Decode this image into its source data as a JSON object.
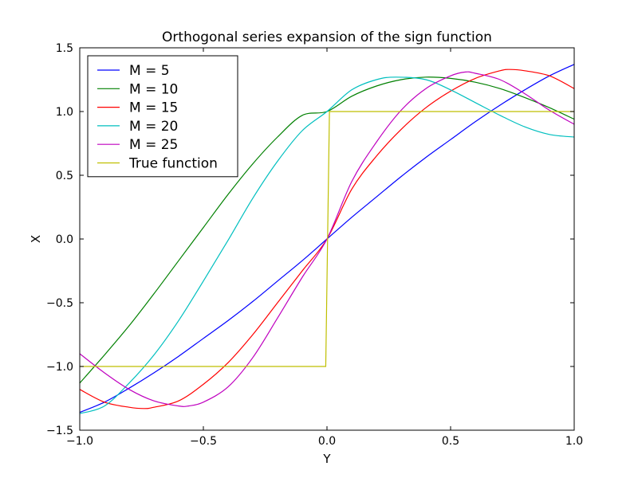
{
  "chart_data": {
    "type": "line",
    "title": "Orthogonal series expansion of the sign function",
    "xlabel": "Y",
    "ylabel": "X",
    "xlim": [
      -1.0,
      1.0
    ],
    "ylim": [
      -1.5,
      1.5
    ],
    "xticks": [
      "−1.0",
      "−0.5",
      "0.0",
      "0.5",
      "1.0"
    ],
    "xtick_values": [
      -1.0,
      -0.5,
      0.0,
      0.5,
      1.0
    ],
    "yticks": [
      "−1.5",
      "−1.0",
      "−0.5",
      "0.0",
      "0.5",
      "1.0",
      "1.5"
    ],
    "ytick_values": [
      -1.5,
      -1.0,
      -0.5,
      0.0,
      0.5,
      1.0,
      1.5
    ],
    "grid": false,
    "legend_position": "top-left",
    "series": [
      {
        "name": "M = 5",
        "color": "#0000ff",
        "x": [
          -1.0,
          -0.9,
          -0.8,
          -0.7,
          -0.6,
          -0.5,
          -0.4,
          -0.3,
          -0.2,
          -0.1,
          0.0,
          0.1,
          0.2,
          0.3,
          0.4,
          0.5,
          0.6,
          0.7,
          0.8,
          0.9,
          1.0
        ],
        "y": [
          -1.36,
          -1.28,
          -1.17,
          -1.05,
          -0.92,
          -0.78,
          -0.64,
          -0.49,
          -0.33,
          -0.17,
          0.0,
          0.17,
          0.33,
          0.49,
          0.64,
          0.78,
          0.92,
          1.05,
          1.17,
          1.28,
          1.37
        ]
      },
      {
        "name": "M = 10",
        "color": "#008000",
        "x": [
          -1.0,
          -0.9,
          -0.8,
          -0.7,
          -0.6,
          -0.5,
          -0.4,
          -0.3,
          -0.2,
          -0.1,
          0.0,
          0.1,
          0.2,
          0.3,
          0.4,
          0.5,
          0.6,
          0.7,
          0.8,
          0.9,
          1.0
        ],
        "y": [
          -1.13,
          -0.91,
          -0.68,
          -0.43,
          -0.17,
          0.09,
          0.35,
          0.59,
          0.8,
          0.97,
          1.0,
          1.12,
          1.2,
          1.25,
          1.27,
          1.26,
          1.23,
          1.18,
          1.11,
          1.03,
          0.94
        ]
      },
      {
        "name": "M = 15",
        "color": "#ff0000",
        "x": [
          -1.0,
          -0.9,
          -0.8,
          -0.74,
          -0.7,
          -0.6,
          -0.5,
          -0.4,
          -0.3,
          -0.2,
          -0.1,
          0.0,
          0.1,
          0.2,
          0.3,
          0.4,
          0.5,
          0.6,
          0.7,
          0.74,
          0.8,
          0.9,
          1.0
        ],
        "y": [
          -1.18,
          -1.28,
          -1.32,
          -1.33,
          -1.32,
          -1.27,
          -1.14,
          -0.97,
          -0.75,
          -0.5,
          -0.25,
          0.0,
          0.39,
          0.65,
          0.86,
          1.03,
          1.16,
          1.26,
          1.32,
          1.33,
          1.32,
          1.28,
          1.18
        ]
      },
      {
        "name": "M = 20",
        "color": "#00bfbf",
        "x": [
          -1.0,
          -0.9,
          -0.8,
          -0.7,
          -0.6,
          -0.5,
          -0.4,
          -0.3,
          -0.2,
          -0.1,
          0.0,
          0.1,
          0.2,
          0.28,
          0.4,
          0.5,
          0.6,
          0.7,
          0.8,
          0.9,
          1.0
        ],
        "y": [
          -1.37,
          -1.31,
          -1.13,
          -0.91,
          -0.64,
          -0.33,
          -0.01,
          0.32,
          0.61,
          0.85,
          1.0,
          1.17,
          1.25,
          1.27,
          1.25,
          1.17,
          1.07,
          0.97,
          0.88,
          0.82,
          0.8
        ]
      },
      {
        "name": "M = 25",
        "color": "#bf00bf",
        "x": [
          -1.0,
          -0.9,
          -0.8,
          -0.7,
          -0.6,
          -0.56,
          -0.5,
          -0.4,
          -0.3,
          -0.2,
          -0.1,
          0.0,
          0.1,
          0.2,
          0.3,
          0.4,
          0.5,
          0.56,
          0.6,
          0.7,
          0.8,
          0.9,
          1.0
        ],
        "y": [
          -0.9,
          -1.05,
          -1.18,
          -1.27,
          -1.31,
          -1.31,
          -1.28,
          -1.16,
          -0.93,
          -0.62,
          -0.3,
          0.0,
          0.45,
          0.76,
          1.01,
          1.18,
          1.28,
          1.31,
          1.3,
          1.25,
          1.14,
          1.01,
          0.9
        ]
      },
      {
        "name": "True function",
        "color": "#bfbf00",
        "x": [
          -1.0,
          -0.005,
          0.01,
          1.0
        ],
        "y": [
          -1.0,
          -1.0,
          1.0,
          1.0
        ]
      }
    ]
  }
}
